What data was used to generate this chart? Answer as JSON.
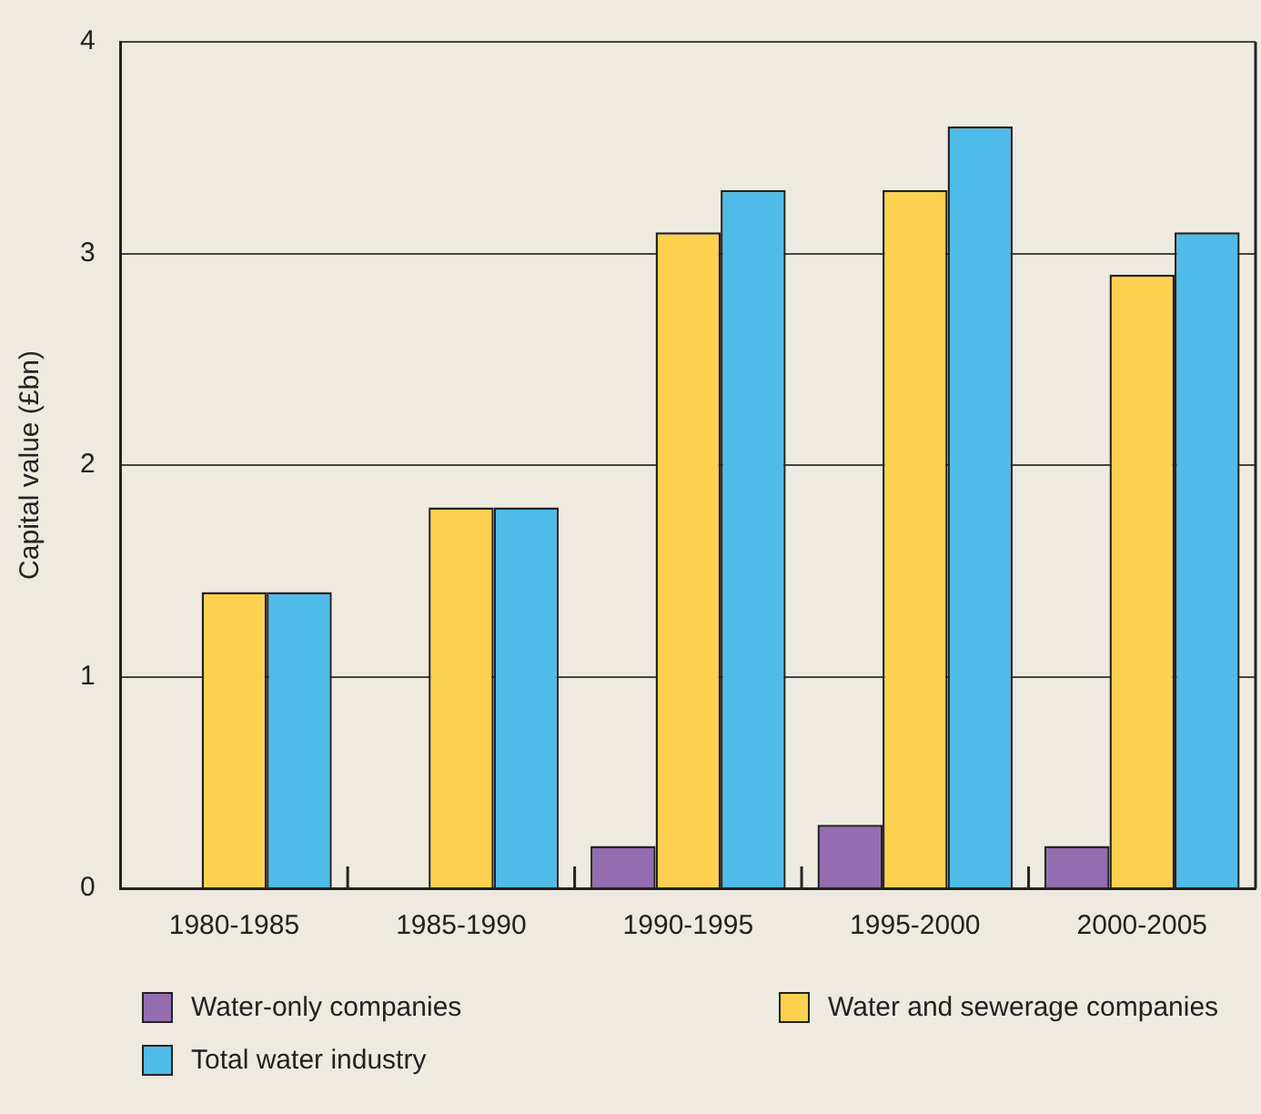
{
  "chart_data": {
    "type": "bar",
    "ylabel": "Capital value (£bn)",
    "categories": [
      "1980-1985",
      "1985-1990",
      "1990-1995",
      "1995-2000",
      "2000-2005"
    ],
    "series": [
      {
        "name": "Water-only companies",
        "color": "#946db0",
        "values": [
          0,
          0,
          0.2,
          0.3,
          0.2
        ]
      },
      {
        "name": "Water and sewerage companies",
        "color": "#fdd14f",
        "values": [
          1.4,
          1.8,
          3.1,
          3.3,
          2.9
        ]
      },
      {
        "name": "Total water industry",
        "color": "#4fbbe9",
        "values": [
          1.4,
          1.8,
          3.3,
          3.6,
          3.1
        ]
      }
    ],
    "ylim": [
      0,
      4
    ],
    "yticks": [
      0,
      1,
      2,
      3,
      4
    ],
    "grid": "y",
    "legend": "bottom"
  }
}
